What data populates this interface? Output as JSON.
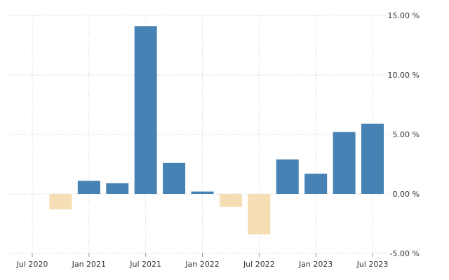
{
  "chart_data": {
    "type": "bar",
    "title": "",
    "xlabel": "",
    "ylabel": "",
    "x": [
      "2020-10",
      "2021-01",
      "2021-04",
      "2021-07",
      "2021-10",
      "2022-01",
      "2022-04",
      "2022-07",
      "2022-10",
      "2023-01",
      "2023-04",
      "2023-07"
    ],
    "values": [
      -1.3,
      1.1,
      0.9,
      14.1,
      2.6,
      0.2,
      -1.1,
      -3.4,
      2.9,
      1.7,
      5.2,
      5.9
    ],
    "ylim": [
      -5,
      15
    ],
    "y_ticks": [
      {
        "value": 15,
        "label": "15.00 %"
      },
      {
        "value": 10,
        "label": "10.00 %"
      },
      {
        "value": 5,
        "label": "5.00 %"
      },
      {
        "value": 0,
        "label": "0.00 %"
      },
      {
        "value": -5,
        "label": "-5.00 %"
      }
    ],
    "x_ticks": [
      {
        "value": "2020-07",
        "label": "Jul 2020"
      },
      {
        "value": "2021-01",
        "label": "Jan 2021"
      },
      {
        "value": "2021-07",
        "label": "Jul 2021"
      },
      {
        "value": "2022-01",
        "label": "Jan 2022"
      },
      {
        "value": "2022-07",
        "label": "Jul 2022"
      },
      {
        "value": "2023-01",
        "label": "Jan 2023"
      },
      {
        "value": "2023-07",
        "label": "Jul 2023"
      }
    ],
    "grid": true,
    "y_axis_position": "right",
    "colors": {
      "positive": "#4682b4",
      "negative": "#f5deb3"
    }
  }
}
